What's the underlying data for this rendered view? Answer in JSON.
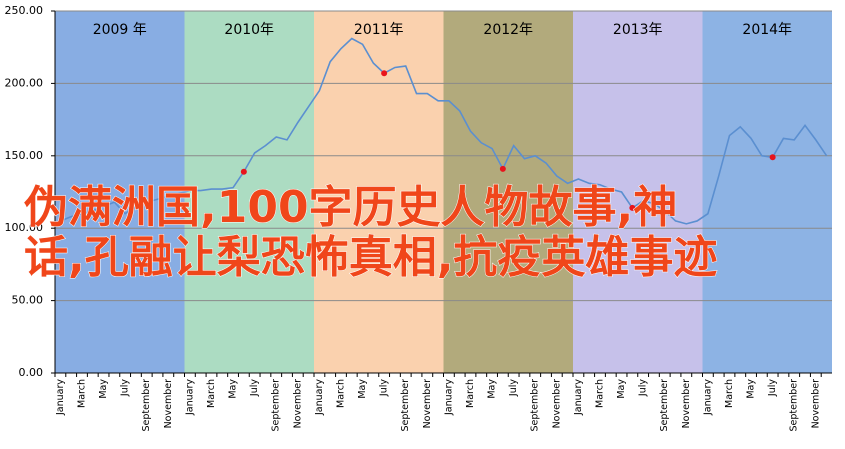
{
  "chart_data": {
    "type": "line",
    "bands": [
      {
        "label": "2009 年",
        "color": "#88ade3"
      },
      {
        "label": "2010年",
        "color": "#acdcc2"
      },
      {
        "label": "2011年",
        "color": "#fad1ae"
      },
      {
        "label": "2012年",
        "color": "#b2aa7c"
      },
      {
        "label": "2013年",
        "color": "#c6c1ea"
      },
      {
        "label": "2014年",
        "color": "#8db3e4"
      }
    ],
    "categories": [
      "January",
      null,
      "March",
      null,
      "May",
      null,
      "July",
      null,
      "September",
      null,
      "November",
      null,
      "January",
      null,
      "March",
      null,
      "May",
      null,
      "July",
      null,
      "September",
      null,
      "November",
      null,
      "January",
      null,
      "March",
      null,
      "May",
      null,
      "July",
      null,
      "September",
      null,
      "November",
      null,
      "January",
      null,
      "March",
      null,
      "May",
      null,
      "July",
      null,
      "September",
      null,
      "November",
      null,
      "January",
      null,
      "March",
      null,
      "May",
      null,
      "July",
      null,
      "September",
      null,
      "November",
      null,
      "January",
      null,
      "March",
      null,
      "May",
      null,
      "July",
      null,
      "September",
      null,
      "November",
      null
    ],
    "series": [
      {
        "color": "#5b8fd0",
        "values": [
          105,
          108,
          110,
          112,
          115,
          118,
          110,
          115,
          118,
          120,
          122,
          124,
          126,
          126,
          127,
          127,
          128,
          139,
          152,
          157,
          163,
          161,
          173,
          184,
          195,
          215,
          224,
          231,
          227,
          214,
          207,
          211,
          212,
          193,
          193,
          188,
          188,
          181,
          167,
          159,
          155,
          141,
          157,
          148,
          150,
          145,
          136,
          131,
          134,
          131,
          130,
          127,
          125,
          114,
          119,
          117,
          112,
          105,
          103,
          105,
          110,
          136,
          164,
          170,
          162,
          150,
          149,
          162,
          161,
          171,
          161,
          150
        ]
      },
      {
        "color": "#e8141c",
        "values": [
          null,
          null,
          null,
          null,
          null,
          null,
          null,
          null,
          null,
          null,
          null,
          null,
          null,
          null,
          null,
          null,
          null,
          139,
          null,
          null,
          null,
          null,
          null,
          null,
          null,
          null,
          null,
          null,
          null,
          null,
          207,
          null,
          null,
          null,
          null,
          null,
          null,
          null,
          null,
          null,
          null,
          141,
          null,
          null,
          null,
          null,
          null,
          null,
          null,
          null,
          null,
          null,
          null,
          114,
          null,
          null,
          null,
          null,
          null,
          null,
          null,
          null,
          null,
          null,
          null,
          null,
          149,
          null,
          null,
          null,
          null,
          null
        ]
      }
    ],
    "ylim": [
      0,
      250
    ],
    "yticks": [
      {
        "value": 0,
        "label": "0.00"
      },
      {
        "value": 50,
        "label": "50.00"
      },
      {
        "value": 100,
        "label": "100.00"
      },
      {
        "value": 150,
        "label": "150.00"
      },
      {
        "value": 200,
        "label": "200.00"
      },
      {
        "value": 250,
        "label": "250.00"
      }
    ],
    "grid": true
  },
  "overlay": {
    "lines": [
      "伪满洲国,100字历史人物故事,神",
      "话,孔融让梨恐怖真相,抗疫英雄事迹"
    ]
  }
}
